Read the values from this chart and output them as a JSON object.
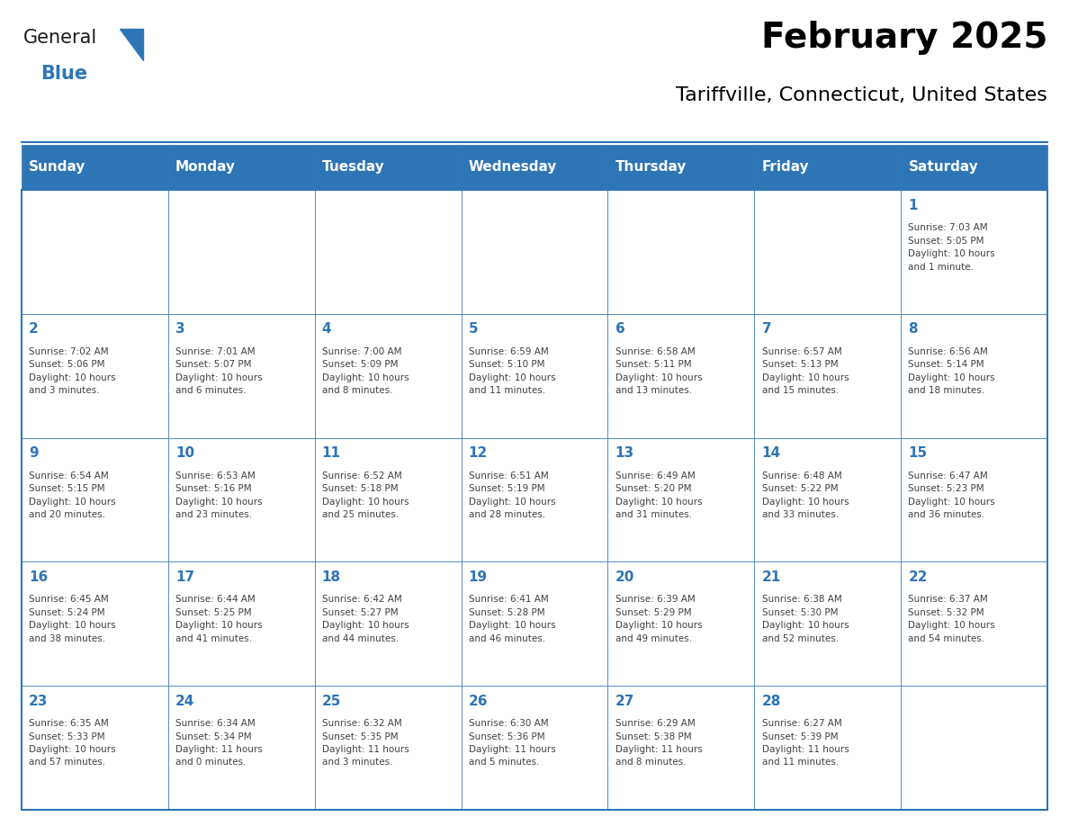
{
  "title": "February 2025",
  "subtitle": "Tariffville, Connecticut, United States",
  "header_color": "#2E75B6",
  "header_text_color": "#FFFFFF",
  "cell_bg_color": "#FFFFFF",
  "border_color": "#2E75B6",
  "day_number_color": "#2E75B6",
  "detail_text_color": "#404040",
  "days_of_week": [
    "Sunday",
    "Monday",
    "Tuesday",
    "Wednesday",
    "Thursday",
    "Friday",
    "Saturday"
  ],
  "weeks": [
    [
      {
        "day": null,
        "info": null
      },
      {
        "day": null,
        "info": null
      },
      {
        "day": null,
        "info": null
      },
      {
        "day": null,
        "info": null
      },
      {
        "day": null,
        "info": null
      },
      {
        "day": null,
        "info": null
      },
      {
        "day": 1,
        "info": "Sunrise: 7:03 AM\nSunset: 5:05 PM\nDaylight: 10 hours\nand 1 minute."
      }
    ],
    [
      {
        "day": 2,
        "info": "Sunrise: 7:02 AM\nSunset: 5:06 PM\nDaylight: 10 hours\nand 3 minutes."
      },
      {
        "day": 3,
        "info": "Sunrise: 7:01 AM\nSunset: 5:07 PM\nDaylight: 10 hours\nand 6 minutes."
      },
      {
        "day": 4,
        "info": "Sunrise: 7:00 AM\nSunset: 5:09 PM\nDaylight: 10 hours\nand 8 minutes."
      },
      {
        "day": 5,
        "info": "Sunrise: 6:59 AM\nSunset: 5:10 PM\nDaylight: 10 hours\nand 11 minutes."
      },
      {
        "day": 6,
        "info": "Sunrise: 6:58 AM\nSunset: 5:11 PM\nDaylight: 10 hours\nand 13 minutes."
      },
      {
        "day": 7,
        "info": "Sunrise: 6:57 AM\nSunset: 5:13 PM\nDaylight: 10 hours\nand 15 minutes."
      },
      {
        "day": 8,
        "info": "Sunrise: 6:56 AM\nSunset: 5:14 PM\nDaylight: 10 hours\nand 18 minutes."
      }
    ],
    [
      {
        "day": 9,
        "info": "Sunrise: 6:54 AM\nSunset: 5:15 PM\nDaylight: 10 hours\nand 20 minutes."
      },
      {
        "day": 10,
        "info": "Sunrise: 6:53 AM\nSunset: 5:16 PM\nDaylight: 10 hours\nand 23 minutes."
      },
      {
        "day": 11,
        "info": "Sunrise: 6:52 AM\nSunset: 5:18 PM\nDaylight: 10 hours\nand 25 minutes."
      },
      {
        "day": 12,
        "info": "Sunrise: 6:51 AM\nSunset: 5:19 PM\nDaylight: 10 hours\nand 28 minutes."
      },
      {
        "day": 13,
        "info": "Sunrise: 6:49 AM\nSunset: 5:20 PM\nDaylight: 10 hours\nand 31 minutes."
      },
      {
        "day": 14,
        "info": "Sunrise: 6:48 AM\nSunset: 5:22 PM\nDaylight: 10 hours\nand 33 minutes."
      },
      {
        "day": 15,
        "info": "Sunrise: 6:47 AM\nSunset: 5:23 PM\nDaylight: 10 hours\nand 36 minutes."
      }
    ],
    [
      {
        "day": 16,
        "info": "Sunrise: 6:45 AM\nSunset: 5:24 PM\nDaylight: 10 hours\nand 38 minutes."
      },
      {
        "day": 17,
        "info": "Sunrise: 6:44 AM\nSunset: 5:25 PM\nDaylight: 10 hours\nand 41 minutes."
      },
      {
        "day": 18,
        "info": "Sunrise: 6:42 AM\nSunset: 5:27 PM\nDaylight: 10 hours\nand 44 minutes."
      },
      {
        "day": 19,
        "info": "Sunrise: 6:41 AM\nSunset: 5:28 PM\nDaylight: 10 hours\nand 46 minutes."
      },
      {
        "day": 20,
        "info": "Sunrise: 6:39 AM\nSunset: 5:29 PM\nDaylight: 10 hours\nand 49 minutes."
      },
      {
        "day": 21,
        "info": "Sunrise: 6:38 AM\nSunset: 5:30 PM\nDaylight: 10 hours\nand 52 minutes."
      },
      {
        "day": 22,
        "info": "Sunrise: 6:37 AM\nSunset: 5:32 PM\nDaylight: 10 hours\nand 54 minutes."
      }
    ],
    [
      {
        "day": 23,
        "info": "Sunrise: 6:35 AM\nSunset: 5:33 PM\nDaylight: 10 hours\nand 57 minutes."
      },
      {
        "day": 24,
        "info": "Sunrise: 6:34 AM\nSunset: 5:34 PM\nDaylight: 11 hours\nand 0 minutes."
      },
      {
        "day": 25,
        "info": "Sunrise: 6:32 AM\nSunset: 5:35 PM\nDaylight: 11 hours\nand 3 minutes."
      },
      {
        "day": 26,
        "info": "Sunrise: 6:30 AM\nSunset: 5:36 PM\nDaylight: 11 hours\nand 5 minutes."
      },
      {
        "day": 27,
        "info": "Sunrise: 6:29 AM\nSunset: 5:38 PM\nDaylight: 11 hours\nand 8 minutes."
      },
      {
        "day": 28,
        "info": "Sunrise: 6:27 AM\nSunset: 5:39 PM\nDaylight: 11 hours\nand 11 minutes."
      },
      {
        "day": null,
        "info": null
      }
    ]
  ],
  "logo_general_color": "#1a1a1a",
  "logo_blue_color": "#2E75B6"
}
